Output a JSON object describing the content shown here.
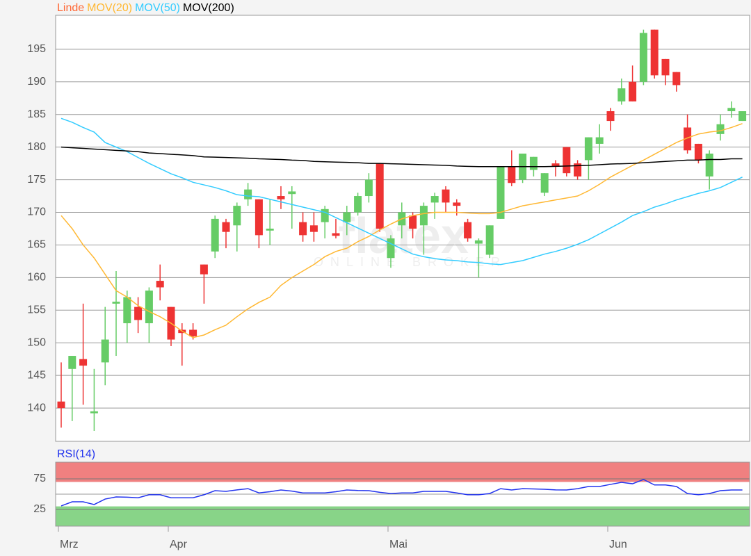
{
  "watermark": {
    "brand": "flatex",
    "tagline": "ONLINE BROKER"
  },
  "chart_data": [
    {
      "type": "candlestick",
      "categories": [
        "Mrz",
        null,
        null,
        null,
        null,
        null,
        null,
        null,
        null,
        null,
        "Apr",
        null,
        null,
        null,
        null,
        null,
        null,
        null,
        null,
        null,
        null,
        null,
        null,
        null,
        null,
        null,
        null,
        null,
        null,
        null,
        "Mai",
        null,
        null,
        null,
        null,
        null,
        null,
        null,
        null,
        null,
        null,
        null,
        null,
        null,
        null,
        null,
        null,
        null,
        null,
        null,
        "Jun",
        null,
        null,
        null,
        null,
        null,
        null,
        null,
        null,
        null,
        null,
        null,
        null
      ],
      "ylim": [
        134.9,
        200.2
      ],
      "yticks": [
        140,
        145,
        150,
        155,
        160,
        165,
        170,
        175,
        180,
        185,
        190,
        195
      ],
      "grid": true,
      "candles": {
        "name": "Linde",
        "color": "#ff6633",
        "up_color": "#66cc66",
        "down_color": "#ee3333",
        "open": [
          141,
          146,
          147.5,
          139.2,
          147,
          156,
          153,
          155.5,
          153,
          159.5,
          155.5,
          152,
          152,
          162,
          164,
          168.5,
          168,
          172,
          172,
          167.2,
          172.5,
          172.8,
          168.5,
          168,
          168.5,
          166.8,
          168.5,
          170,
          172.5,
          177.5,
          163,
          168,
          169.5,
          168,
          171.5,
          173.5,
          171.5,
          168.5,
          165.2,
          163.5,
          169,
          177,
          175,
          176.5,
          173,
          177.5,
          180,
          177.5,
          178,
          180.5,
          185.5,
          187,
          190,
          190,
          198,
          193.5,
          191.5,
          183,
          180.5,
          175.5,
          182,
          185.5,
          184
        ],
        "high": [
          147,
          148,
          156,
          146,
          155.5,
          161,
          158,
          157,
          158.5,
          162,
          155.5,
          153,
          153,
          162,
          169.5,
          169,
          171.5,
          174.5,
          172,
          172,
          174,
          174,
          170,
          170,
          171,
          169,
          171,
          173,
          176,
          177.5,
          166.5,
          171.5,
          170,
          171.5,
          173,
          174,
          172,
          169,
          166,
          168,
          177,
          179.5,
          179,
          178.5,
          176,
          178,
          180,
          178,
          181.5,
          183.5,
          186,
          190.5,
          192.5,
          198,
          198,
          193.5,
          191.5,
          185,
          180.5,
          179.5,
          185,
          187,
          185.5
        ],
        "low": [
          137,
          138,
          140.5,
          136.5,
          143.5,
          148,
          150,
          151.5,
          150,
          156.5,
          149.5,
          146.5,
          150.5,
          156,
          163,
          164.5,
          164,
          171,
          164.5,
          165,
          170.5,
          167.5,
          165.5,
          165.5,
          166,
          166,
          166.5,
          169.5,
          171.5,
          167,
          161.5,
          166,
          166,
          163.5,
          169,
          170,
          169.5,
          165.5,
          160,
          163,
          169,
          174,
          174.5,
          175.5,
          172.5,
          175.5,
          175.5,
          175,
          175,
          179,
          182.5,
          186.5,
          187,
          189.5,
          190.5,
          189.5,
          188.5,
          179,
          177.5,
          173.5,
          181,
          184.5,
          184
        ],
        "close": [
          140,
          148,
          146.5,
          139.5,
          150.5,
          156.3,
          157,
          153.5,
          158,
          158.5,
          150.5,
          151.5,
          151,
          160.5,
          169,
          167,
          171,
          173.5,
          166.5,
          167.5,
          172,
          173.2,
          166.5,
          167,
          170.5,
          166.4,
          170,
          172.5,
          175,
          167.5,
          166,
          170,
          167.5,
          171,
          172.5,
          171.5,
          171,
          166,
          165.7,
          168,
          177,
          174.5,
          179,
          178.5,
          176,
          177,
          176,
          175.5,
          181.5,
          181.5,
          184,
          189,
          187,
          197.5,
          191,
          191,
          189.5,
          179.5,
          178,
          179,
          183.5,
          186,
          185.5
        ]
      },
      "series": [
        {
          "name": "MOV(20)",
          "color": "#ffb833",
          "values": [
            169.5,
            167.5,
            165,
            163,
            160.5,
            158,
            157,
            155.7,
            154.8,
            154,
            153,
            151.8,
            150.8,
            151.2,
            152,
            152.7,
            154,
            155.2,
            156.2,
            157,
            158.8,
            160,
            161,
            162,
            163.2,
            164,
            164.5,
            165.5,
            166.3,
            167.3,
            168.2,
            169,
            169.5,
            169.8,
            170,
            170,
            170,
            169.9,
            169.8,
            169.8,
            170,
            170.5,
            171,
            171.3,
            171.6,
            171.9,
            172.2,
            172.5,
            173.3,
            174.3,
            175.4,
            176.3,
            177.2,
            178,
            178.9,
            179.8,
            180.7,
            181.4,
            182,
            182.3,
            182.5,
            183,
            183.6
          ]
        },
        {
          "name": "MOV(50)",
          "color": "#33ccff",
          "values": [
            184.4,
            183.8,
            183,
            182.3,
            180.7,
            180,
            179.3,
            178.4,
            177.5,
            176.7,
            175.9,
            175.3,
            174.6,
            174.2,
            173.8,
            173.3,
            172.7,
            172.5,
            172.4,
            172,
            171.6,
            171.2,
            170.8,
            170.4,
            170,
            169.2,
            168.4,
            167.6,
            166.8,
            166,
            165.2,
            164.4,
            163.6,
            163.2,
            162.9,
            162.7,
            162.6,
            162.4,
            162.3,
            162.1,
            162,
            162.3,
            162.6,
            163.1,
            163.6,
            164,
            164.5,
            165.1,
            165.8,
            166.7,
            167.6,
            168.5,
            169.5,
            170.1,
            170.8,
            171.3,
            171.9,
            172.4,
            172.9,
            173.3,
            173.8,
            174.6,
            175.4
          ]
        },
        {
          "name": "MOV(200)",
          "color": "#000000",
          "values": [
            180,
            179.9,
            179.8,
            179.7,
            179.6,
            179.5,
            179.4,
            179.3,
            179.1,
            179,
            178.9,
            178.8,
            178.7,
            178.5,
            178.45,
            178.4,
            178.35,
            178.3,
            178.2,
            178.15,
            178.1,
            178,
            177.95,
            177.8,
            177.75,
            177.7,
            177.65,
            177.6,
            177.5,
            177.5,
            177.45,
            177.4,
            177.35,
            177.3,
            177.25,
            177.2,
            177.1,
            177.05,
            177,
            177,
            177,
            177,
            177,
            177,
            177,
            177.05,
            177.1,
            177.15,
            177.2,
            177.3,
            177.4,
            177.45,
            177.5,
            177.6,
            177.7,
            177.8,
            177.9,
            178,
            178,
            178.1,
            178.1,
            178.2,
            178.2
          ]
        }
      ]
    },
    {
      "type": "line",
      "ylim": [
        -2.3,
        102.3
      ],
      "yticks": [
        25,
        75
      ],
      "midline": 50,
      "overbought": 70,
      "oversold": 30,
      "series": [
        {
          "name": "RSI(14)",
          "color": "#2233ee",
          "values": [
            30.7,
            37.5,
            37.5,
            33,
            42,
            45.5,
            45,
            44,
            49,
            49,
            44,
            44,
            44,
            49,
            55.7,
            54.5,
            57,
            59,
            52,
            54,
            56.8,
            55,
            52,
            52,
            52,
            54,
            56.8,
            56,
            55.7,
            53,
            51,
            52,
            52,
            54.5,
            54.5,
            54.5,
            52,
            49,
            49,
            51,
            59,
            56.8,
            59,
            58.5,
            58,
            57,
            56.8,
            59,
            62.5,
            62.5,
            66,
            69.3,
            67,
            74,
            65,
            65,
            62.5,
            51,
            49,
            51,
            55.7,
            56.8,
            56.8
          ]
        }
      ]
    }
  ]
}
